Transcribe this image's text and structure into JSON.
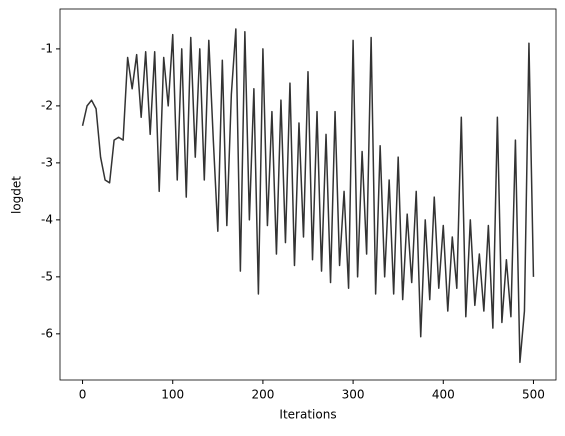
{
  "chart_data": {
    "type": "line",
    "xlabel": "Iterations",
    "ylabel": "logdet",
    "x": [
      0,
      5,
      10,
      15,
      20,
      25,
      30,
      35,
      40,
      45,
      50,
      55,
      60,
      65,
      70,
      75,
      80,
      85,
      90,
      95,
      100,
      105,
      110,
      115,
      120,
      125,
      130,
      135,
      140,
      145,
      150,
      155,
      160,
      165,
      170,
      175,
      180,
      185,
      190,
      195,
      200,
      205,
      210,
      215,
      220,
      225,
      230,
      235,
      240,
      245,
      250,
      255,
      260,
      265,
      270,
      275,
      280,
      285,
      290,
      295,
      300,
      305,
      310,
      315,
      320,
      325,
      330,
      335,
      340,
      345,
      350,
      355,
      360,
      365,
      370,
      375,
      380,
      385,
      390,
      395,
      400,
      405,
      410,
      415,
      420,
      425,
      430,
      435,
      440,
      445,
      450,
      455,
      460,
      465,
      470,
      475,
      480,
      485,
      490,
      495,
      500
    ],
    "series": [
      {
        "color": "#333333",
        "values": [
          -2.35,
          -2.0,
          -1.9,
          -2.05,
          -2.9,
          -3.3,
          -3.35,
          -2.6,
          -2.55,
          -2.6,
          -1.15,
          -1.7,
          -1.1,
          -2.2,
          -1.05,
          -2.5,
          -1.05,
          -3.5,
          -1.15,
          -2.0,
          -0.75,
          -3.3,
          -1.0,
          -3.6,
          -0.8,
          -2.9,
          -1.0,
          -3.3,
          -0.85,
          -2.6,
          -4.2,
          -1.2,
          -4.1,
          -1.8,
          -0.65,
          -4.9,
          -0.7,
          -4.0,
          -1.7,
          -5.3,
          -1.0,
          -4.1,
          -2.1,
          -4.6,
          -1.9,
          -4.4,
          -1.6,
          -4.8,
          -2.3,
          -4.3,
          -1.4,
          -4.7,
          -2.1,
          -4.9,
          -2.5,
          -5.1,
          -2.1,
          -4.8,
          -3.5,
          -5.2,
          -0.85,
          -5.0,
          -2.8,
          -4.6,
          -0.8,
          -5.3,
          -2.7,
          -5.0,
          -3.3,
          -5.3,
          -2.9,
          -5.4,
          -3.9,
          -5.1,
          -3.5,
          -6.05,
          -4.0,
          -5.4,
          -3.6,
          -5.2,
          -4.1,
          -5.6,
          -4.3,
          -5.2,
          -2.2,
          -5.7,
          -4.0,
          -5.5,
          -4.6,
          -5.6,
          -4.1,
          -5.9,
          -2.2,
          -5.8,
          -4.7,
          -5.7,
          -2.6,
          -6.5,
          -5.6,
          -0.9,
          -5.0
        ]
      }
    ],
    "xlim": [
      -25,
      525
    ],
    "xticks": [
      0,
      100,
      200,
      300,
      400,
      500
    ],
    "ylim": [
      -6.81,
      -0.3
    ],
    "yticks": [
      -6,
      -5,
      -4,
      -3,
      -2,
      -1
    ]
  }
}
